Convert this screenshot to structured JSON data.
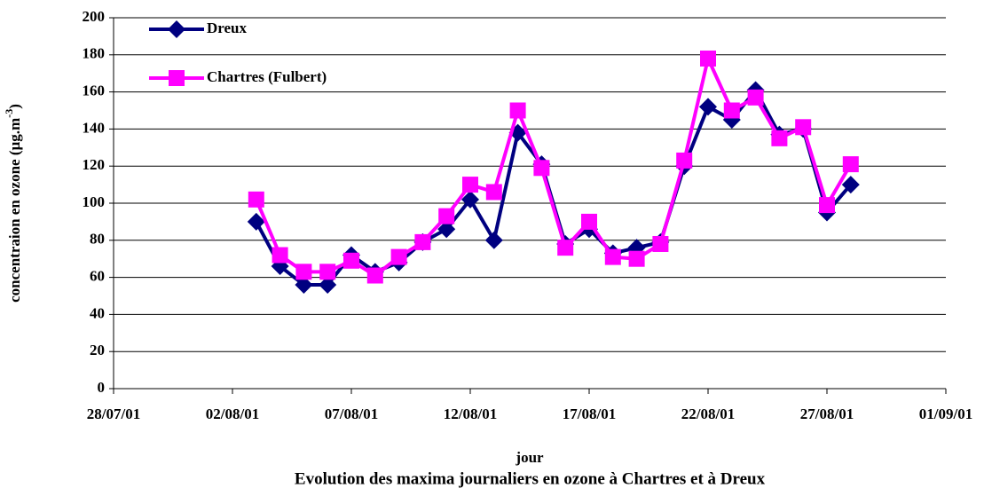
{
  "chart_data": {
    "type": "line",
    "title": "Evolution des maxima journaliers en ozone à Chartres et à Dreux",
    "x_label": "jour",
    "y_label": {
      "text": "concentraion en ozone (µg.m",
      "superscript": "-3",
      "after": ")"
    },
    "x": [
      "03/08/01",
      "04/08/01",
      "05/08/01",
      "06/08/01",
      "07/08/01",
      "08/08/01",
      "09/08/01",
      "10/08/01",
      "11/08/01",
      "12/08/01",
      "13/08/01",
      "14/08/01",
      "15/08/01",
      "16/08/01",
      "17/08/01",
      "18/08/01",
      "19/08/01",
      "20/08/01",
      "21/08/01",
      "22/08/01",
      "23/08/01",
      "24/08/01",
      "25/08/01",
      "26/08/01",
      "27/08/01",
      "28/08/01"
    ],
    "series": [
      {
        "name": "Dreux",
        "color": "#000080",
        "marker": "diamond",
        "values": [
          90,
          66,
          56,
          56,
          72,
          63,
          68,
          79,
          86,
          102,
          80,
          138,
          121,
          78,
          86,
          73,
          76,
          79,
          120,
          152,
          145,
          161,
          137,
          140,
          95,
          110
        ]
      },
      {
        "name": "Chartres (Fulbert)",
        "color": "#ff00ff",
        "marker": "square",
        "values": [
          102,
          72,
          63,
          63,
          69,
          61,
          71,
          79,
          93,
          110,
          106,
          150,
          119,
          76,
          90,
          71,
          70,
          78,
          123,
          178,
          150,
          157,
          135,
          141,
          99,
          121
        ]
      }
    ],
    "xlim": [
      "28/07/01",
      "01/09/01"
    ],
    "xticks": [
      "28/07/01",
      "02/08/01",
      "07/08/01",
      "12/08/01",
      "17/08/01",
      "22/08/01",
      "27/08/01",
      "01/09/01"
    ],
    "ylim": [
      0,
      200
    ],
    "yticks": [
      0,
      20,
      40,
      60,
      80,
      100,
      120,
      140,
      160,
      180,
      200
    ],
    "grid": true,
    "legend": "top-left"
  }
}
